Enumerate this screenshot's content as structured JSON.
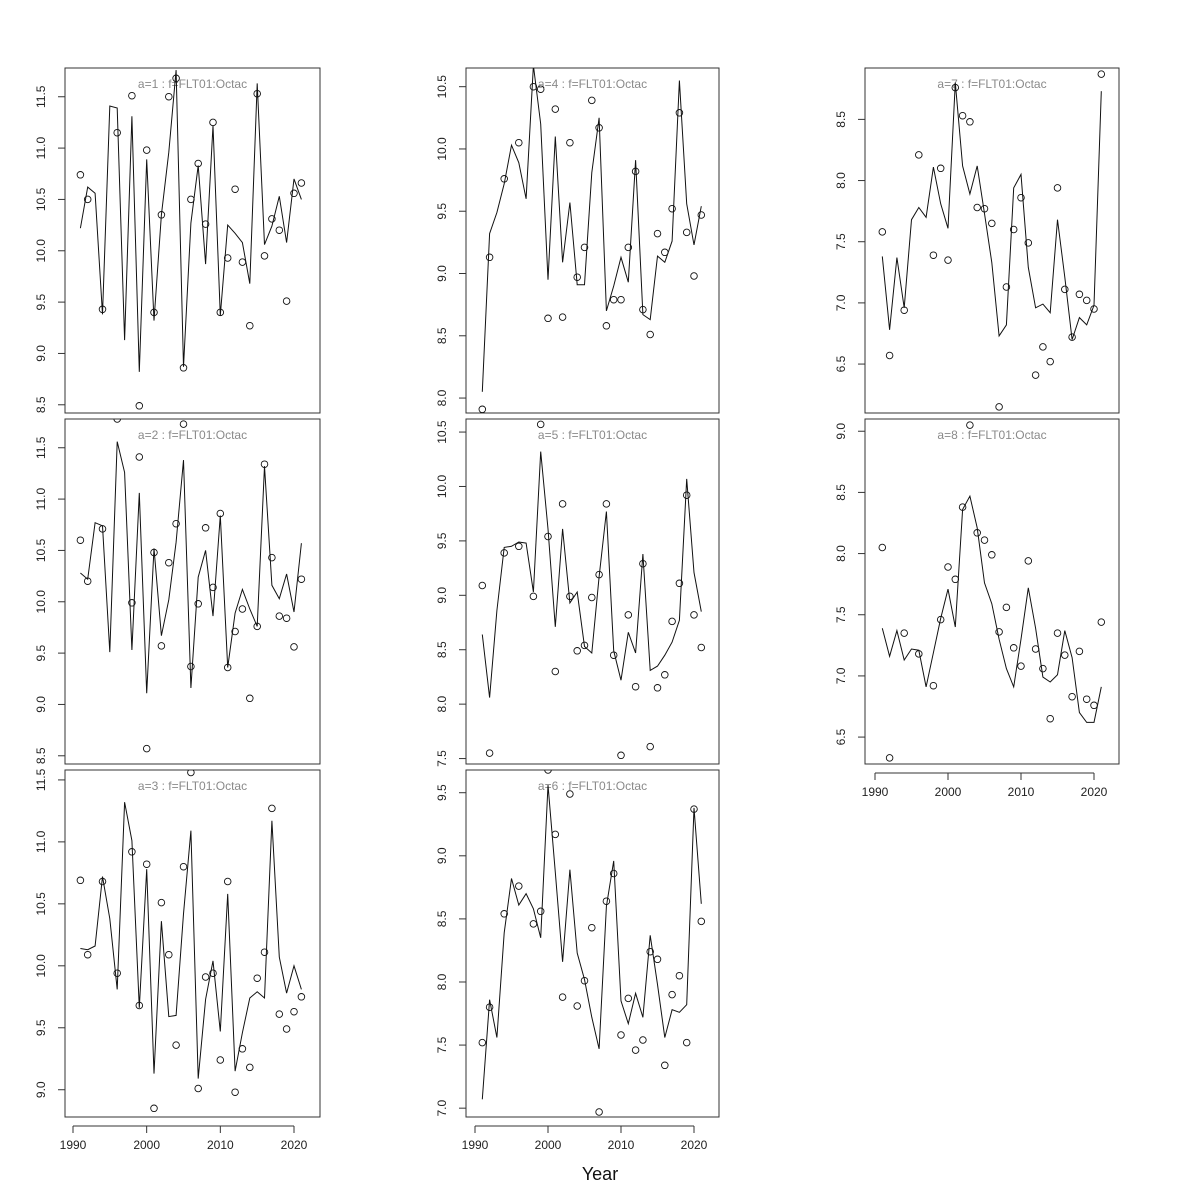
{
  "figure": {
    "xlabel": "Year"
  },
  "chart_data": [
    {
      "type": "line",
      "title": "a=1  :  f=FLT01:Octac",
      "x": [
        1991,
        1992,
        1993,
        1994,
        1995,
        1996,
        1997,
        1998,
        1999,
        2000,
        2001,
        2002,
        2003,
        2004,
        2005,
        2006,
        2007,
        2008,
        2009,
        2010,
        2011,
        2012,
        2013,
        2014,
        2015,
        2016,
        2017,
        2018,
        2019,
        2020,
        2021
      ],
      "ylim": [
        8.42,
        11.78
      ],
      "yticks": [
        "8.5",
        "9.0",
        "9.5",
        "10.0",
        "10.5",
        "11.0",
        "11.5"
      ],
      "xticks": [],
      "series": [
        {
          "kind": "points",
          "values": [
            10.74,
            10.5,
            null,
            9.43,
            null,
            11.15,
            null,
            11.51,
            8.49,
            10.98,
            9.4,
            10.35,
            11.5,
            11.68,
            8.86,
            10.5,
            10.85,
            10.26,
            11.25,
            9.4,
            9.93,
            10.6,
            9.89,
            9.27,
            11.53,
            9.95,
            10.31,
            10.2,
            9.51,
            10.56,
            10.66
          ]
        },
        {
          "kind": "line",
          "values": [
            10.22,
            10.62,
            10.56,
            9.38,
            11.41,
            11.39,
            9.13,
            11.31,
            8.82,
            10.89,
            9.32,
            10.35,
            10.96,
            11.76,
            8.87,
            10.27,
            10.83,
            9.87,
            11.22,
            9.37,
            10.25,
            10.17,
            10.08,
            9.68,
            11.63,
            10.06,
            10.24,
            10.53,
            10.08,
            10.7,
            10.5
          ]
        }
      ]
    },
    {
      "type": "line",
      "title": "a=2  :  f=FLT01:Octac",
      "x": [
        1991,
        1992,
        1993,
        1994,
        1995,
        1996,
        1997,
        1998,
        1999,
        2000,
        2001,
        2002,
        2003,
        2004,
        2005,
        2006,
        2007,
        2008,
        2009,
        2010,
        2011,
        2012,
        2013,
        2014,
        2015,
        2016,
        2017,
        2018,
        2019,
        2020,
        2021
      ],
      "ylim": [
        8.42,
        11.78
      ],
      "yticks": [
        "8.5",
        "9.0",
        "9.5",
        "10.0",
        "10.5",
        "11.0",
        "11.5"
      ],
      "xticks": [],
      "series": [
        {
          "kind": "points",
          "values": [
            10.6,
            10.2,
            null,
            10.71,
            null,
            11.78,
            null,
            9.99,
            11.41,
            8.57,
            10.48,
            9.57,
            10.38,
            10.76,
            11.73,
            9.37,
            9.98,
            10.72,
            10.14,
            10.86,
            9.36,
            9.71,
            9.93,
            9.06,
            9.76,
            11.34,
            10.43,
            9.86,
            9.84,
            9.56,
            10.22
          ]
        },
        {
          "kind": "line",
          "values": [
            10.28,
            10.22,
            10.77,
            10.74,
            9.51,
            11.56,
            11.26,
            9.53,
            11.06,
            9.11,
            10.52,
            9.67,
            10.02,
            10.58,
            11.38,
            9.16,
            10.24,
            10.5,
            9.86,
            10.84,
            9.36,
            9.89,
            10.12,
            9.93,
            9.76,
            11.32,
            10.16,
            10.03,
            10.27,
            9.9,
            10.57
          ]
        }
      ]
    },
    {
      "type": "line",
      "title": "a=3  :  f=FLT01:Octac",
      "x": [
        1991,
        1992,
        1993,
        1994,
        1995,
        1996,
        1997,
        1998,
        1999,
        2000,
        2001,
        2002,
        2003,
        2004,
        2005,
        2006,
        2007,
        2008,
        2009,
        2010,
        2011,
        2012,
        2013,
        2014,
        2015,
        2016,
        2017,
        2018,
        2019,
        2020,
        2021
      ],
      "ylim": [
        8.78,
        11.58
      ],
      "yticks": [
        "9.0",
        "9.5",
        "10.0",
        "10.5",
        "11.0",
        "11.5"
      ],
      "xticks": [
        "1990",
        "2000",
        "2010",
        "2020"
      ],
      "series": [
        {
          "kind": "points",
          "values": [
            10.69,
            10.09,
            null,
            10.68,
            null,
            9.94,
            null,
            10.92,
            9.68,
            10.82,
            8.85,
            10.51,
            10.09,
            9.36,
            10.8,
            11.56,
            9.01,
            9.91,
            9.94,
            9.24,
            10.68,
            8.98,
            9.33,
            9.18,
            9.9,
            10.11,
            11.27,
            9.61,
            9.49,
            9.63,
            9.75
          ]
        },
        {
          "kind": "line",
          "values": [
            10.14,
            10.13,
            10.16,
            10.72,
            10.38,
            9.81,
            11.32,
            11.01,
            9.66,
            10.78,
            9.13,
            10.36,
            9.59,
            9.6,
            10.42,
            11.09,
            9.09,
            9.73,
            10.04,
            9.47,
            10.58,
            9.15,
            9.46,
            9.74,
            9.79,
            9.74,
            11.17,
            10.07,
            9.78,
            10.0,
            9.81
          ]
        }
      ]
    },
    {
      "type": "line",
      "title": "a=4  :  f=FLT01:Octac",
      "x": [
        1991,
        1992,
        1993,
        1994,
        1995,
        1996,
        1997,
        1998,
        1999,
        2000,
        2001,
        2002,
        2003,
        2004,
        2005,
        2006,
        2007,
        2008,
        2009,
        2010,
        2011,
        2012,
        2013,
        2014,
        2015,
        2016,
        2017,
        2018,
        2019,
        2020,
        2021
      ],
      "ylim": [
        7.88,
        10.65
      ],
      "yticks": [
        "8.0",
        "8.5",
        "9.0",
        "9.5",
        "10.0",
        "10.5"
      ],
      "xticks": [],
      "series": [
        {
          "kind": "points",
          "values": [
            7.91,
            9.13,
            null,
            9.76,
            null,
            10.05,
            null,
            10.5,
            10.48,
            8.64,
            10.32,
            8.65,
            10.05,
            8.97,
            9.21,
            10.39,
            10.17,
            8.58,
            8.79,
            8.79,
            9.21,
            9.82,
            8.71,
            8.51,
            9.32,
            9.17,
            9.52,
            10.29,
            9.33,
            8.98,
            9.47
          ]
        },
        {
          "kind": "line",
          "values": [
            8.05,
            9.32,
            9.49,
            9.72,
            10.03,
            9.89,
            9.6,
            10.67,
            10.2,
            8.95,
            10.1,
            9.09,
            9.57,
            8.91,
            8.91,
            9.81,
            10.25,
            8.7,
            8.9,
            9.13,
            8.93,
            9.91,
            8.67,
            8.63,
            9.14,
            9.09,
            9.26,
            10.55,
            9.56,
            9.23,
            9.54
          ]
        }
      ]
    },
    {
      "type": "line",
      "title": "a=5  :  f=FLT01:Octac",
      "x": [
        1991,
        1992,
        1993,
        1994,
        1995,
        1996,
        1997,
        1998,
        1999,
        2000,
        2001,
        2002,
        2003,
        2004,
        2005,
        2006,
        2007,
        2008,
        2009,
        2010,
        2011,
        2012,
        2013,
        2014,
        2015,
        2016,
        2017,
        2018,
        2019,
        2020,
        2021
      ],
      "ylim": [
        7.45,
        10.62
      ],
      "yticks": [
        "7.5",
        "8.0",
        "8.5",
        "9.0",
        "9.5",
        "10.0",
        "10.5"
      ],
      "xticks": [],
      "series": [
        {
          "kind": "points",
          "values": [
            9.09,
            7.55,
            null,
            9.39,
            null,
            9.45,
            null,
            8.99,
            10.57,
            9.54,
            8.3,
            9.84,
            8.99,
            8.49,
            8.54,
            8.98,
            9.19,
            9.84,
            8.45,
            7.53,
            8.82,
            8.16,
            9.29,
            7.61,
            8.15,
            8.27,
            8.76,
            9.11,
            9.92,
            8.82,
            8.52
          ]
        },
        {
          "kind": "line",
          "values": [
            8.64,
            8.06,
            8.86,
            9.44,
            9.45,
            9.49,
            9.48,
            9.03,
            10.32,
            9.61,
            8.71,
            9.61,
            8.93,
            9.03,
            8.53,
            8.47,
            9.17,
            9.77,
            8.49,
            8.22,
            8.66,
            8.47,
            9.38,
            8.31,
            8.35,
            8.45,
            8.57,
            8.77,
            10.07,
            9.21,
            8.85
          ]
        }
      ]
    },
    {
      "type": "line",
      "title": "a=6  :  f=FLT01:Octac",
      "x": [
        1991,
        1992,
        1993,
        1994,
        1995,
        1996,
        1997,
        1998,
        1999,
        2000,
        2001,
        2002,
        2003,
        2004,
        2005,
        2006,
        2007,
        2008,
        2009,
        2010,
        2011,
        2012,
        2013,
        2014,
        2015,
        2016,
        2017,
        2018,
        2019,
        2020,
        2021
      ],
      "ylim": [
        6.93,
        9.68
      ],
      "yticks": [
        "7.0",
        "7.5",
        "8.0",
        "8.5",
        "9.0",
        "9.5"
      ],
      "xticks": [
        "1990",
        "2000",
        "2010",
        "2020"
      ],
      "series": [
        {
          "kind": "points",
          "values": [
            7.52,
            7.8,
            null,
            8.54,
            null,
            8.76,
            null,
            8.46,
            8.56,
            9.68,
            9.17,
            7.88,
            9.49,
            7.81,
            8.01,
            8.43,
            6.97,
            8.64,
            8.86,
            7.58,
            7.87,
            7.46,
            7.54,
            8.24,
            8.18,
            7.34,
            7.9,
            8.05,
            7.52,
            9.37,
            8.48
          ]
        },
        {
          "kind": "line",
          "values": [
            7.07,
            7.86,
            7.56,
            8.39,
            8.82,
            8.61,
            8.7,
            8.58,
            8.35,
            9.56,
            8.87,
            8.16,
            8.89,
            8.23,
            8.02,
            7.72,
            7.47,
            8.6,
            8.96,
            7.85,
            7.67,
            7.91,
            7.72,
            8.37,
            7.98,
            7.56,
            7.78,
            7.76,
            7.82,
            9.38,
            8.62
          ]
        }
      ]
    },
    {
      "type": "line",
      "title": "a=7  :  f=FLT01:Octac",
      "x": [
        1991,
        1992,
        1993,
        1994,
        1995,
        1996,
        1997,
        1998,
        1999,
        2000,
        2001,
        2002,
        2003,
        2004,
        2005,
        2006,
        2007,
        2008,
        2009,
        2010,
        2011,
        2012,
        2013,
        2014,
        2015,
        2016,
        2017,
        2018,
        2019,
        2020,
        2021
      ],
      "ylim": [
        6.1,
        8.92
      ],
      "yticks": [
        "6.5",
        "7.0",
        "7.5",
        "8.0",
        "8.5"
      ],
      "xticks": [],
      "series": [
        {
          "kind": "points",
          "values": [
            7.58,
            6.57,
            null,
            6.94,
            null,
            8.21,
            null,
            7.39,
            8.1,
            7.35,
            8.76,
            8.53,
            8.48,
            7.78,
            7.77,
            7.65,
            6.15,
            7.13,
            7.6,
            7.86,
            7.49,
            6.41,
            6.64,
            6.52,
            7.94,
            7.11,
            6.72,
            7.07,
            7.02,
            6.95,
            8.87
          ]
        },
        {
          "kind": "line",
          "values": [
            7.38,
            6.78,
            7.37,
            6.96,
            7.68,
            7.78,
            7.7,
            8.11,
            7.81,
            7.61,
            8.8,
            8.12,
            7.89,
            8.12,
            7.73,
            7.33,
            6.73,
            6.82,
            7.94,
            8.05,
            7.29,
            6.96,
            6.99,
            6.92,
            7.68,
            7.21,
            6.7,
            6.88,
            6.82,
            6.98,
            8.73
          ]
        }
      ]
    },
    {
      "type": "line",
      "title": "a=8  :  f=FLT01:Octac",
      "x": [
        1991,
        1992,
        1993,
        1994,
        1995,
        1996,
        1997,
        1998,
        1999,
        2000,
        2001,
        2002,
        2003,
        2004,
        2005,
        2006,
        2007,
        2008,
        2009,
        2010,
        2011,
        2012,
        2013,
        2014,
        2015,
        2016,
        2017,
        2018,
        2019,
        2020,
        2021
      ],
      "ylim": [
        6.28,
        9.1
      ],
      "yticks": [
        "6.5",
        "7.0",
        "7.5",
        "8.0",
        "8.5",
        "9.0"
      ],
      "xticks": [
        "1990",
        "2000",
        "2010",
        "2020"
      ],
      "series": [
        {
          "kind": "points",
          "values": [
            8.05,
            6.33,
            null,
            7.35,
            null,
            7.18,
            null,
            6.92,
            7.46,
            7.89,
            7.79,
            8.38,
            9.05,
            8.17,
            8.11,
            7.99,
            7.36,
            7.56,
            7.23,
            7.08,
            7.94,
            7.22,
            7.06,
            6.65,
            7.35,
            7.17,
            6.83,
            7.2,
            6.81,
            6.76,
            7.44
          ]
        },
        {
          "kind": "line",
          "values": [
            7.39,
            7.16,
            7.37,
            7.13,
            7.22,
            7.21,
            6.91,
            7.19,
            7.47,
            7.71,
            7.4,
            8.36,
            8.47,
            8.21,
            7.76,
            7.59,
            7.3,
            7.06,
            6.91,
            7.3,
            7.72,
            7.39,
            6.99,
            6.95,
            7.01,
            7.37,
            7.15,
            6.7,
            6.62,
            6.62,
            6.91
          ]
        }
      ]
    }
  ]
}
